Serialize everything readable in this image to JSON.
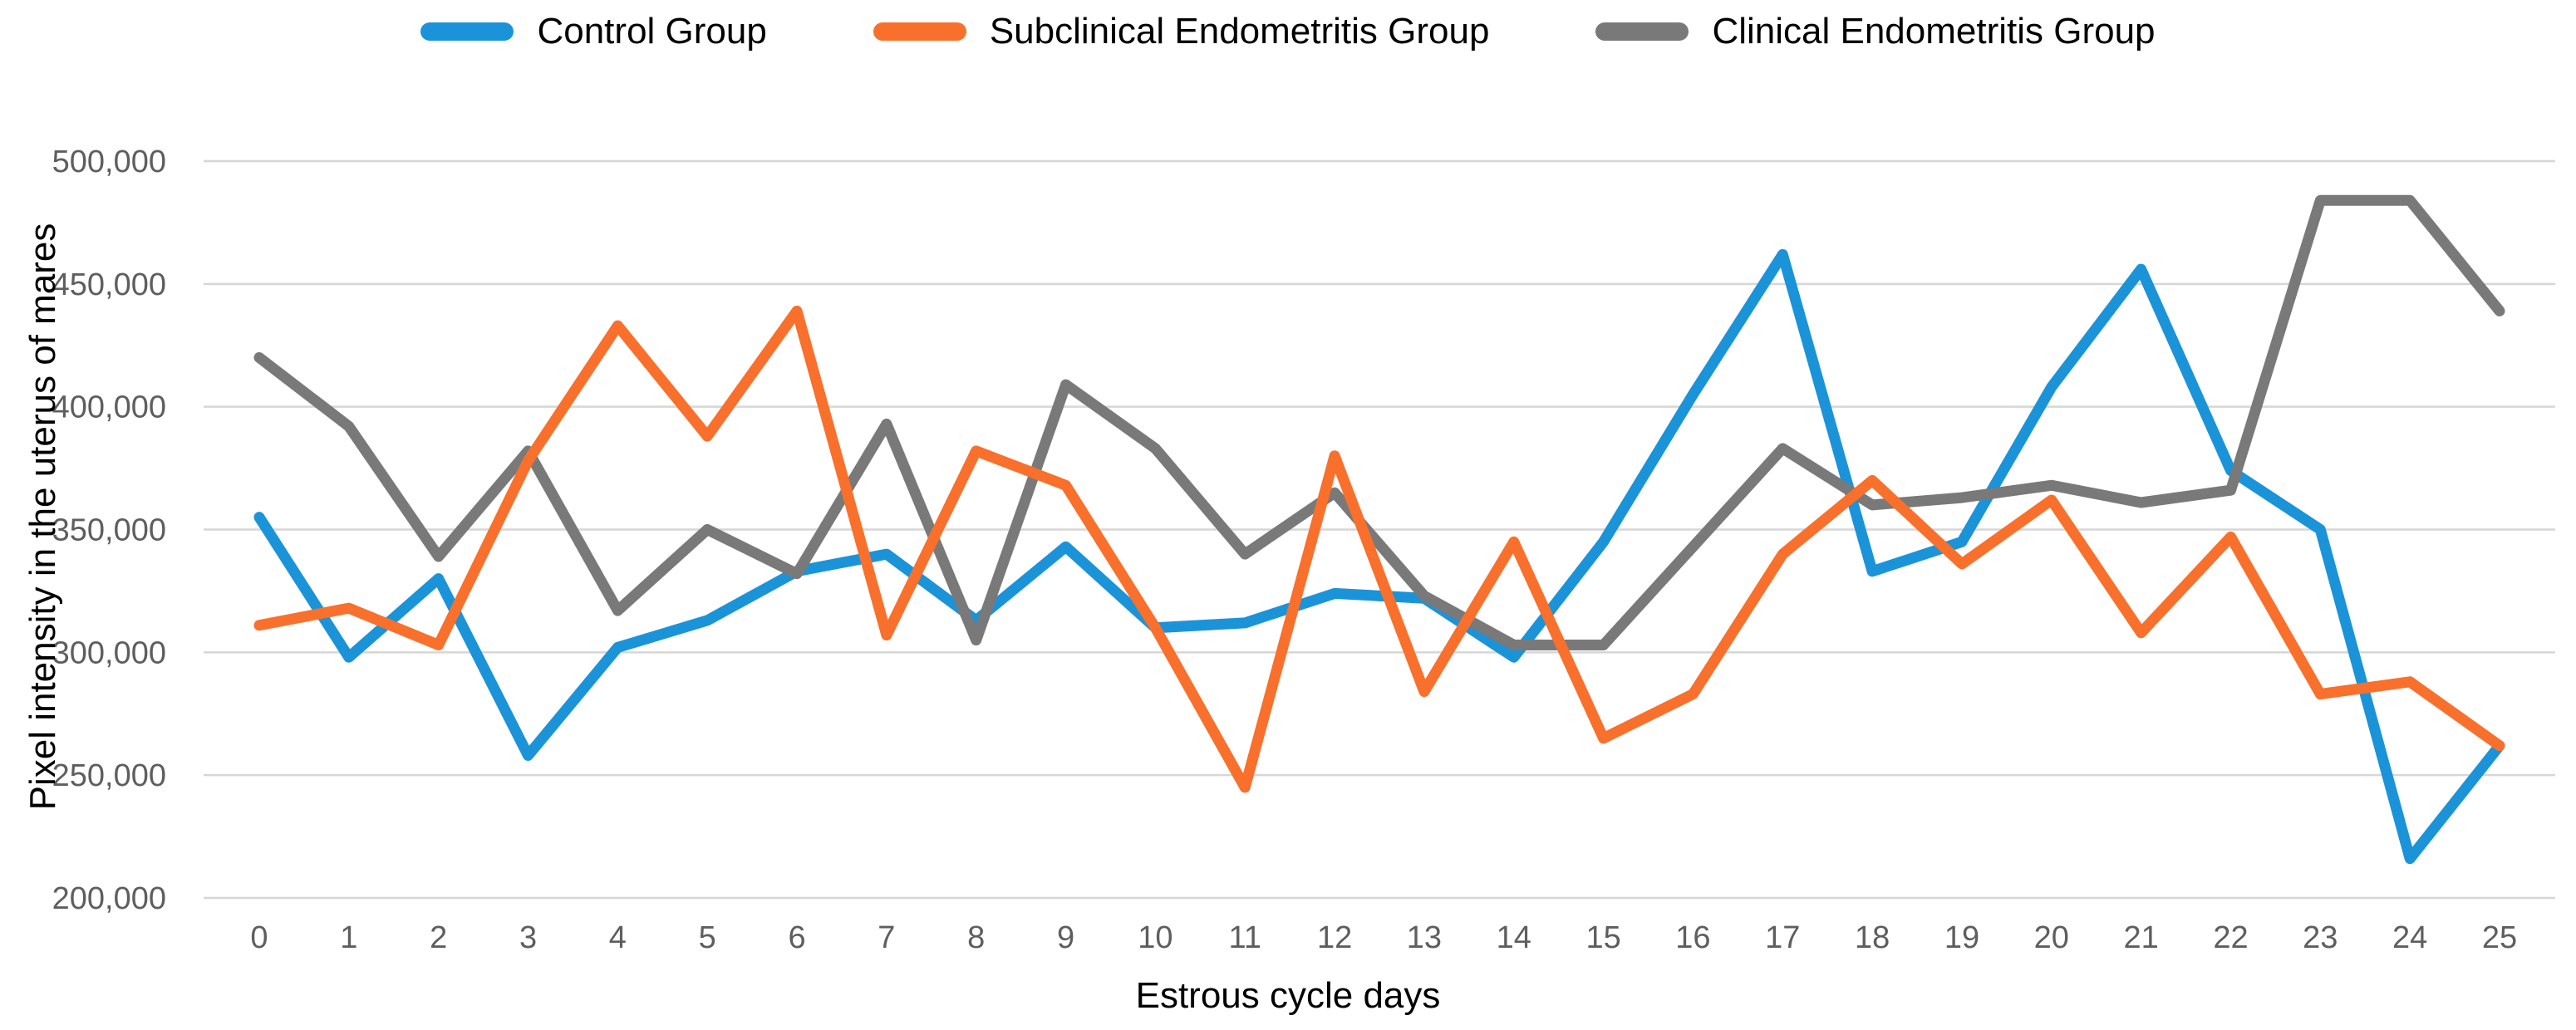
{
  "chart_data": {
    "type": "line",
    "title": "",
    "xlabel": "Estrous cycle days",
    "ylabel": "Pixel intensity in the uterus of mares",
    "categories": [
      "0",
      "1",
      "2",
      "3",
      "4",
      "5",
      "6",
      "7",
      "8",
      "9",
      "10",
      "11",
      "12",
      "13",
      "14",
      "15",
      "16",
      "17",
      "18",
      "19",
      "20",
      "21",
      "22",
      "23",
      "24",
      "25"
    ],
    "series": [
      {
        "name": "Control Group",
        "color": "#1B93D9",
        "values": [
          355000,
          298000,
          330000,
          258000,
          302000,
          313000,
          333000,
          340000,
          313000,
          343000,
          310000,
          312000,
          324000,
          322000,
          298000,
          345000,
          405000,
          462000,
          333000,
          345000,
          408000,
          456000,
          374000,
          350000,
          216000,
          262000
        ]
      },
      {
        "name": "Subclinical Endometritis Group",
        "color": "#F8702C",
        "values": [
          311000,
          318000,
          303000,
          378000,
          433000,
          388000,
          439000,
          307000,
          382000,
          368000,
          310000,
          245000,
          380000,
          284000,
          345000,
          265000,
          283000,
          340000,
          370000,
          336000,
          362000,
          308000,
          347000,
          283000,
          288000,
          262000
        ]
      },
      {
        "name": "Clinical Endometritis Group",
        "color": "#797979",
        "values": [
          420000,
          392000,
          339000,
          382000,
          317000,
          350000,
          332000,
          393000,
          305000,
          409000,
          383000,
          340000,
          365000,
          323000,
          303000,
          303000,
          343000,
          383000,
          360000,
          363000,
          368000,
          361000,
          366000,
          484000,
          484000,
          439000
        ]
      }
    ],
    "ylim": [
      200000,
      500000
    ],
    "y_ticks": [
      500000,
      450000,
      400000,
      350000,
      300000,
      250000,
      200000
    ],
    "y_tick_labels": [
      "500,000",
      "450,000",
      "400,000",
      "350,000",
      "300,000",
      "250,000",
      "200,000"
    ],
    "grid": "horizontal-only",
    "legend_position": "top",
    "colors": {
      "gridline": "#d6d6d6",
      "tick_label": "#5e5e5e",
      "axis_title": "#000000",
      "background": "#ffffff"
    },
    "z_order": [
      "Control Group",
      "Clinical Endometritis Group",
      "Subclinical Endometritis Group"
    ]
  }
}
